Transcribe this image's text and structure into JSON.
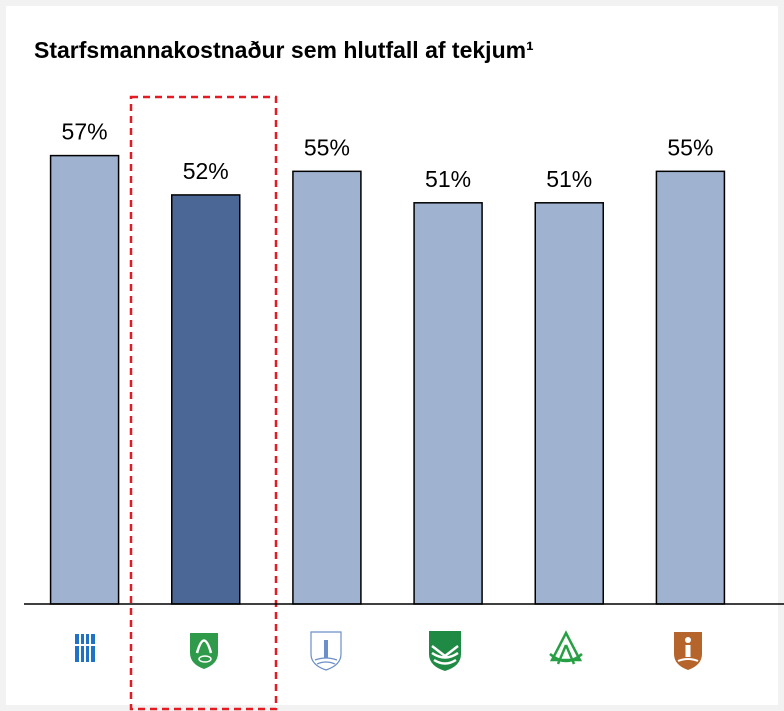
{
  "chart_data": {
    "type": "bar",
    "title": "Starfsmannakostnaður sem hlutfall af tekjum¹",
    "categories": [
      null,
      null,
      null,
      null,
      null,
      null
    ],
    "values": [
      57,
      52,
      55,
      51,
      51,
      55
    ],
    "value_labels": [
      "57%",
      "52%",
      "55%",
      "51%",
      "51%",
      "55%"
    ],
    "colors": [
      "#9fb2d0",
      "#4a6795",
      "#9fb2d0",
      "#9fb2d0",
      "#9fb2d0",
      "#9fb2d0"
    ],
    "ylim": [
      0,
      60
    ]
  }
}
